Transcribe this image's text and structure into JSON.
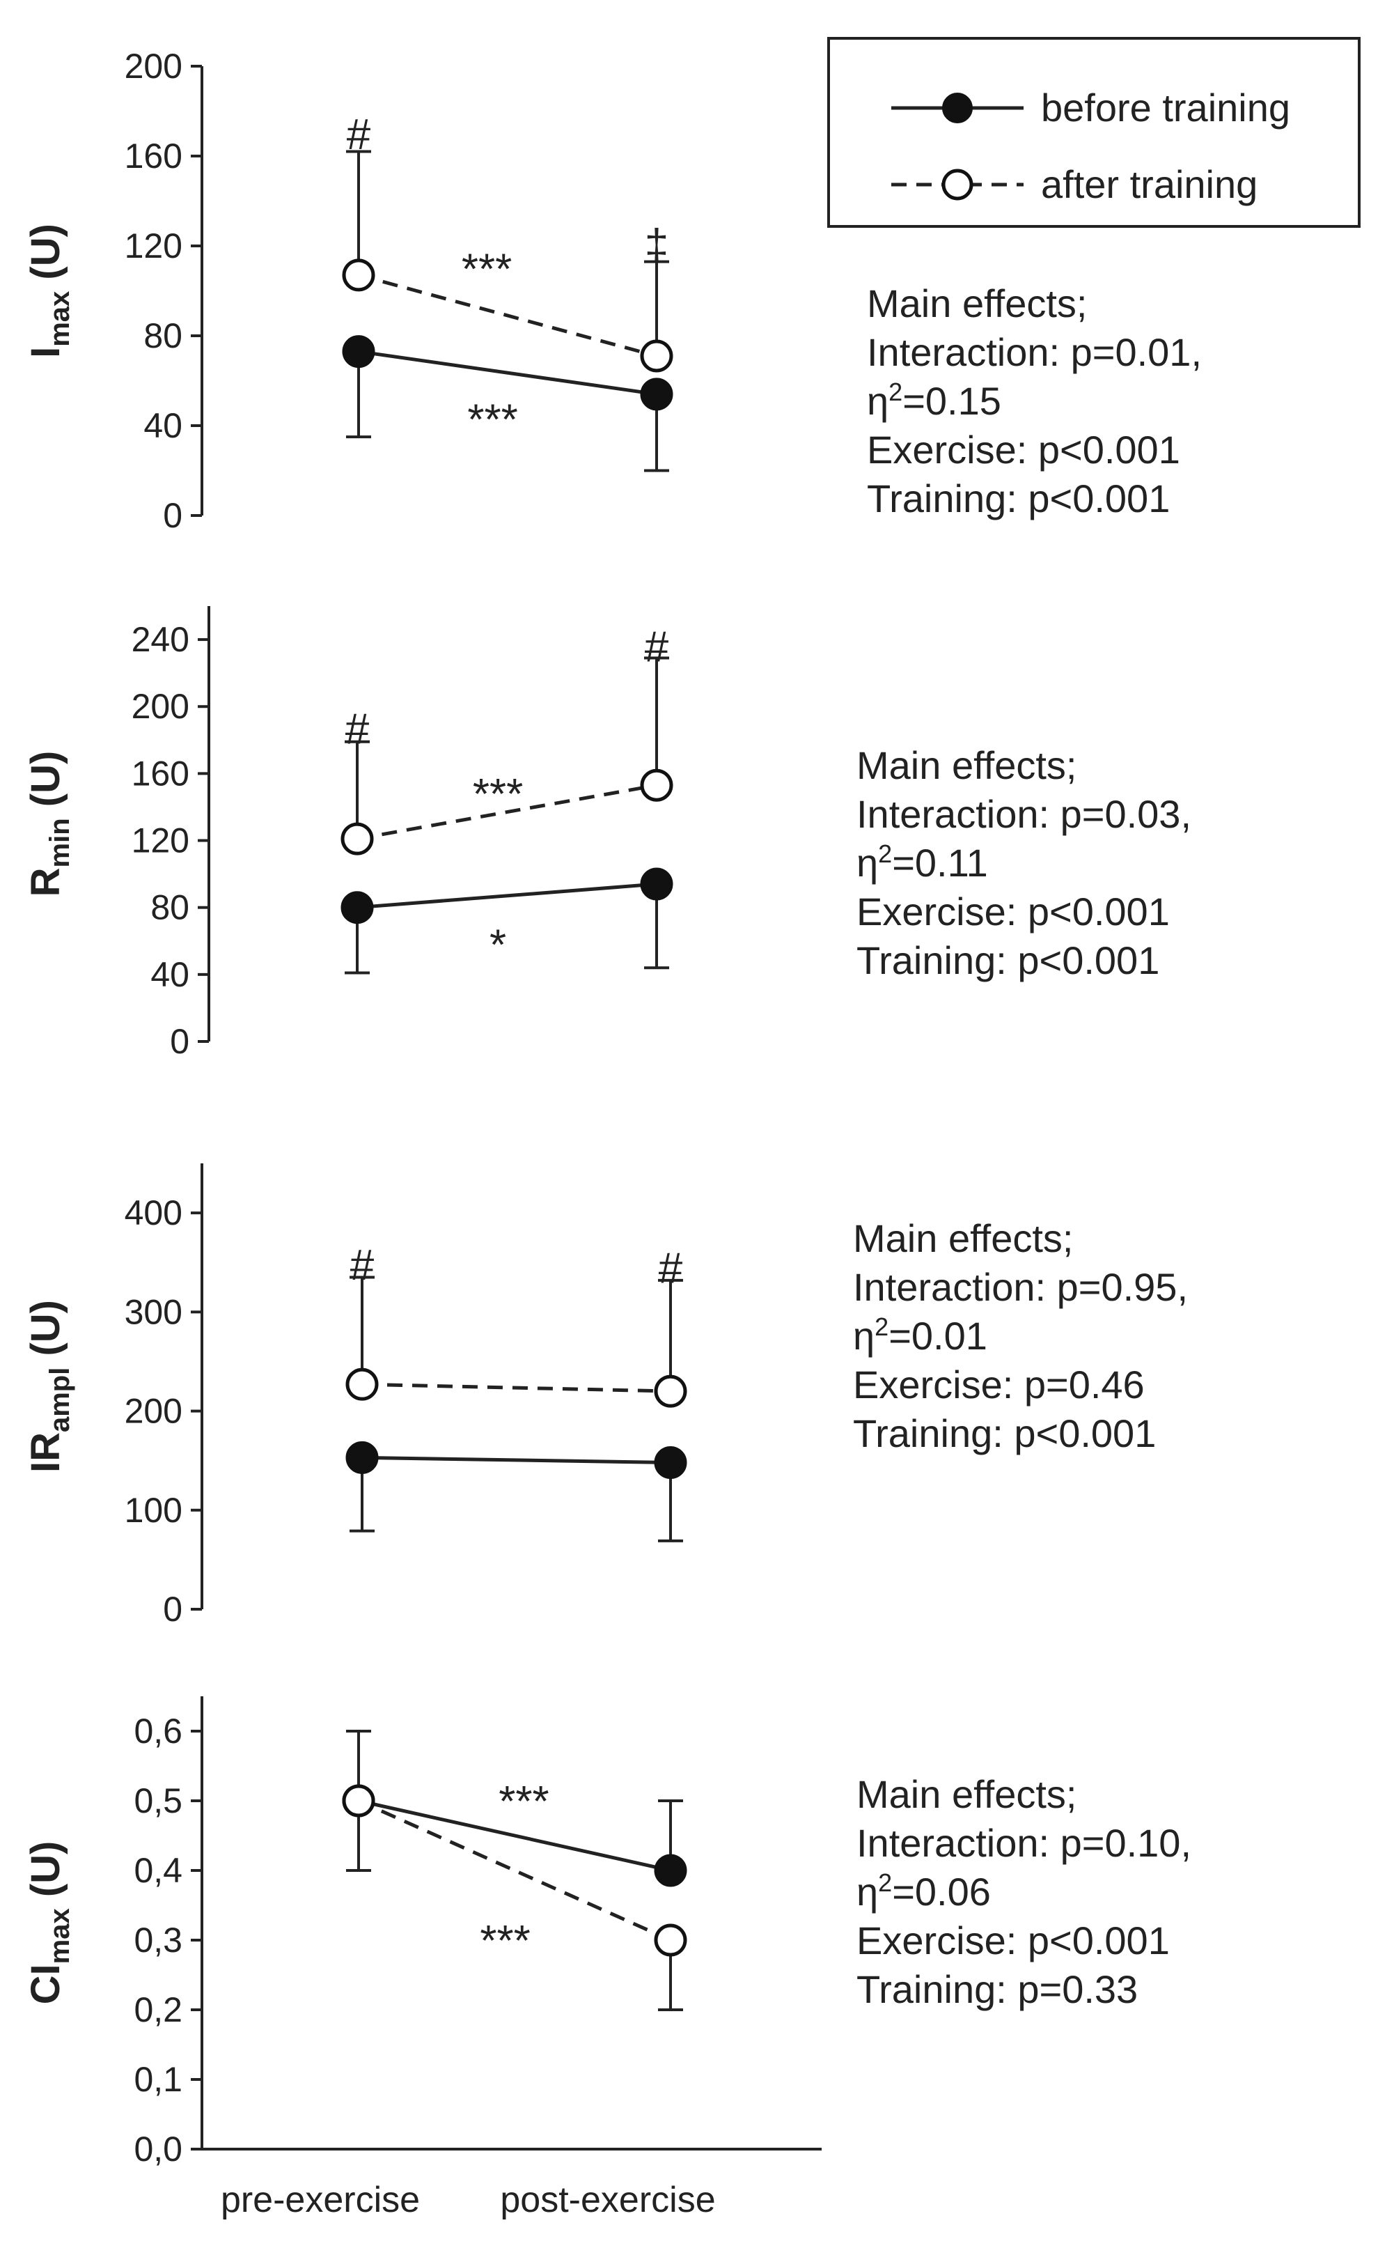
{
  "figure": {
    "categories": [
      "pre-exercise",
      "post-exercise"
    ],
    "legend": [
      {
        "label": "before training",
        "style": "solid",
        "marker": "filled"
      },
      {
        "label": "after training",
        "style": "dashed",
        "marker": "open"
      }
    ]
  },
  "chart_data": [
    {
      "type": "line",
      "ylabel": "I",
      "ylabel_sub": "max",
      "ylabel_suffix": " (U)",
      "ylim": [
        0,
        200
      ],
      "yticks": [
        "0",
        "40",
        "80",
        "120",
        "160",
        "200"
      ],
      "categories": [
        "pre-exercise",
        "post-exercise"
      ],
      "series": [
        {
          "name": "before training",
          "values": [
            73,
            54
          ],
          "error_low": [
            38,
            34
          ],
          "error_high": [
            0,
            0
          ]
        },
        {
          "name": "after training",
          "values": [
            107,
            71
          ],
          "error_low": [
            0,
            0
          ],
          "error_high": [
            55,
            42
          ]
        }
      ],
      "annotations": [
        {
          "text": "#",
          "x": 0,
          "y": 170
        },
        {
          "text": "‡",
          "x": 1,
          "y": 121
        },
        {
          "text": "***",
          "x": 0.43,
          "y": 110
        },
        {
          "text": "***",
          "x": 0.45,
          "y": 43
        }
      ],
      "effects": {
        "line1": "Main effects;",
        "line2": "Interaction: p=0.01,",
        "eta_symbol": "η",
        "eta_sup": "2",
        "eta_value": "=0.15",
        "line4": "Exercise: p<0.001",
        "line5": "Training: p<0.001"
      }
    },
    {
      "type": "line",
      "ylabel": "R",
      "ylabel_sub": "min",
      "ylabel_suffix": " (U)",
      "ylim": [
        0,
        260
      ],
      "yticks": [
        "0",
        "40",
        "80",
        "120",
        "160",
        "200",
        "240"
      ],
      "categories": [
        "pre-exercise",
        "post-exercise"
      ],
      "series": [
        {
          "name": "before training",
          "values": [
            80,
            94
          ],
          "error_low": [
            39,
            50
          ],
          "error_high": [
            0,
            0
          ]
        },
        {
          "name": "after training",
          "values": [
            121,
            153
          ],
          "error_low": [
            0,
            0
          ],
          "error_high": [
            58,
            76
          ]
        }
      ],
      "annotations": [
        {
          "text": "#",
          "x": 0,
          "y": 187
        },
        {
          "text": "#",
          "x": 1,
          "y": 236
        },
        {
          "text": "***",
          "x": 0.47,
          "y": 148
        },
        {
          "text": "*",
          "x": 0.47,
          "y": 58
        }
      ],
      "effects": {
        "line1": "Main effects;",
        "line2": "Interaction: p=0.03,",
        "eta_symbol": "η",
        "eta_sup": "2",
        "eta_value": "=0.11",
        "line4": "Exercise: p<0.001",
        "line5": "Training: p<0.001"
      }
    },
    {
      "type": "line",
      "ylabel": "IR",
      "ylabel_sub": "ampl",
      "ylabel_suffix": " (U)",
      "ylim": [
        0,
        450
      ],
      "yticks": [
        "0",
        "100",
        "200",
        "300",
        "400"
      ],
      "categories": [
        "pre-exercise",
        "post-exercise"
      ],
      "series": [
        {
          "name": "before training",
          "values": [
            153,
            148
          ],
          "error_low": [
            74,
            79
          ],
          "error_high": [
            0,
            0
          ]
        },
        {
          "name": "after training",
          "values": [
            227,
            220
          ],
          "error_low": [
            0,
            0
          ],
          "error_high": [
            108,
            112
          ]
        }
      ],
      "annotations": [
        {
          "text": "#",
          "x": 0,
          "y": 348
        },
        {
          "text": "#",
          "x": 1,
          "y": 345
        }
      ],
      "effects": {
        "line1": "Main effects;",
        "line2": "Interaction: p=0.95,",
        "eta_symbol": "η",
        "eta_sup": "2",
        "eta_value": "=0.01",
        "line4": "Exercise: p=0.46",
        "line5": "Training: p<0.001"
      }
    },
    {
      "type": "line",
      "ylabel": "CI",
      "ylabel_sub": "max",
      "ylabel_suffix": " (U)",
      "ylim": [
        0,
        0.65
      ],
      "yticks": [
        "0,0",
        "0,1",
        "0,2",
        "0,3",
        "0,4",
        "0,5",
        "0,6"
      ],
      "categories": [
        "pre-exercise",
        "post-exercise"
      ],
      "series": [
        {
          "name": "before training",
          "values": [
            0.5,
            0.4
          ],
          "error_low": [
            0,
            0
          ],
          "error_high": [
            0.1,
            0.1
          ]
        },
        {
          "name": "after training",
          "values": [
            0.5,
            0.3
          ],
          "error_low": [
            0.1,
            0.1
          ],
          "error_high": [
            0,
            0
          ]
        }
      ],
      "annotations": [
        {
          "text": "***",
          "x": 0.53,
          "y": 0.5
        },
        {
          "text": "***",
          "x": 0.47,
          "y": 0.3
        }
      ],
      "effects": {
        "line1": "Main effects;",
        "line2": "Interaction: p=0.10,",
        "eta_symbol": "η",
        "eta_sup": "2",
        "eta_value": "=0.06",
        "line4": "Exercise: p<0.001",
        "line5": "Training: p=0.33"
      }
    }
  ]
}
